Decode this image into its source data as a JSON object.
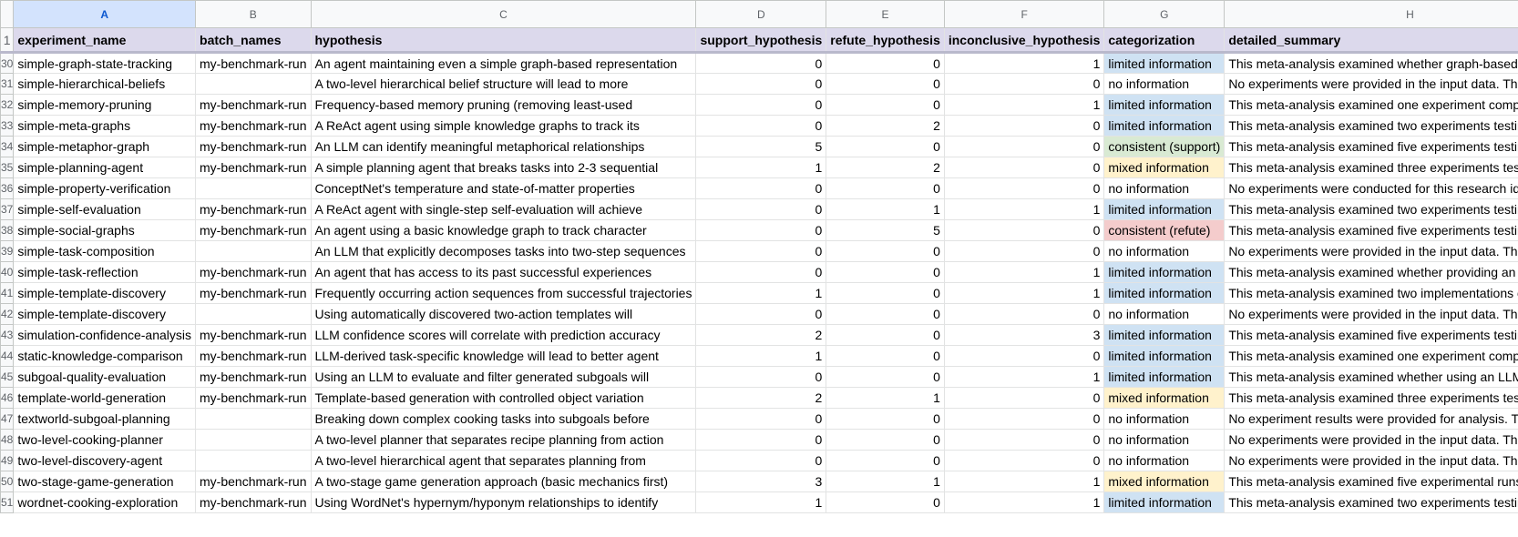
{
  "columns": [
    "A",
    "B",
    "C",
    "D",
    "E",
    "F",
    "G",
    "H"
  ],
  "header_row": {
    "row_number": "1",
    "cells": [
      "experiment_name",
      "batch_names",
      "hypothesis",
      "support_hypothesis",
      "refute_hypothesis",
      "inconclusive_hypothesis",
      "categorization",
      "detailed_summary"
    ]
  },
  "rows": [
    {
      "n": "30",
      "a": "simple-graph-state-tracking",
      "b": "my-benchmark-run",
      "c": "An agent maintaining even a simple graph-based representation",
      "d": "0",
      "e": "0",
      "f": "1",
      "g": "limited information",
      "cat": "limited",
      "h": "This meta-analysis examined whether graph-based state"
    },
    {
      "n": "31",
      "a": "simple-hierarchical-beliefs",
      "b": "",
      "c": "A two-level hierarchical belief structure will lead to more",
      "d": "0",
      "e": "0",
      "f": "0",
      "g": "no information",
      "cat": "none",
      "h": "No experiments were provided in the input data. The experiment"
    },
    {
      "n": "32",
      "a": "simple-memory-pruning",
      "b": "my-benchmark-run",
      "c": "Frequency-based memory pruning (removing least-used",
      "d": "0",
      "e": "0",
      "f": "1",
      "g": "limited information",
      "cat": "limited",
      "h": "This meta-analysis examined one experiment comparing"
    },
    {
      "n": "33",
      "a": "simple-meta-graphs",
      "b": "my-benchmark-run",
      "c": "A ReAct agent using simple knowledge graphs to track its",
      "d": "0",
      "e": "2",
      "f": "0",
      "g": "limited information",
      "cat": "limited",
      "h": "This meta-analysis examined two experiments testing whether"
    },
    {
      "n": "34",
      "a": "simple-metaphor-graph",
      "b": "my-benchmark-run",
      "c": "An LLM can identify meaningful metaphorical relationships",
      "d": "5",
      "e": "0",
      "f": "0",
      "g": "consistent (support)",
      "cat": "consistent-support",
      "h": "This meta-analysis examined five experiments testing whether"
    },
    {
      "n": "35",
      "a": "simple-planning-agent",
      "b": "my-benchmark-run",
      "c": "A simple planning agent that breaks tasks into 2-3 sequential",
      "d": "1",
      "e": "2",
      "f": "0",
      "g": "mixed information",
      "cat": "mixed",
      "h": "This meta-analysis examined three experiments testing whether"
    },
    {
      "n": "36",
      "a": "simple-property-verification",
      "b": "",
      "c": "ConceptNet's temperature and state-of-matter properties",
      "d": "0",
      "e": "0",
      "f": "0",
      "g": "no information",
      "cat": "none",
      "h": "No experiments were conducted for this research idea. The"
    },
    {
      "n": "37",
      "a": "simple-self-evaluation",
      "b": "my-benchmark-run",
      "c": "A ReAct agent with single-step self-evaluation will achieve",
      "d": "0",
      "e": "1",
      "f": "1",
      "g": "limited information",
      "cat": "limited",
      "h": "This meta-analysis examined two experiments testing whether"
    },
    {
      "n": "38",
      "a": "simple-social-graphs",
      "b": "my-benchmark-run",
      "c": "An agent using a basic knowledge graph to track character",
      "d": "0",
      "e": "5",
      "f": "0",
      "g": "consistent (refute)",
      "cat": "consistent-refute",
      "h": "This meta-analysis examined five experiments testing whether"
    },
    {
      "n": "39",
      "a": "simple-task-composition",
      "b": "",
      "c": "An LLM that explicitly decomposes tasks into two-step sequences",
      "d": "0",
      "e": "0",
      "f": "0",
      "g": "no information",
      "cat": "none",
      "h": "No experiments were provided in the input data. The research"
    },
    {
      "n": "40",
      "a": "simple-task-reflection",
      "b": "my-benchmark-run",
      "c": "An agent that has access to its past successful experiences",
      "d": "0",
      "e": "0",
      "f": "1",
      "g": "limited information",
      "cat": "limited",
      "h": "This meta-analysis examined whether providing an agent"
    },
    {
      "n": "41",
      "a": "simple-template-discovery",
      "b": "my-benchmark-run",
      "c": "Frequently occurring action sequences from successful trajectories",
      "d": "1",
      "e": "0",
      "f": "1",
      "g": "limited information",
      "cat": "limited",
      "h": "This meta-analysis examined two implementations of the"
    },
    {
      "n": "42",
      "a": "simple-template-discovery",
      "b": "",
      "c": "Using automatically discovered two-action templates will",
      "d": "0",
      "e": "0",
      "f": "0",
      "g": "no information",
      "cat": "none",
      "h": "No experiments were provided in the input data. The research"
    },
    {
      "n": "43",
      "a": "simulation-confidence-analysis",
      "b": "my-benchmark-run",
      "c": "LLM confidence scores will correlate with prediction accuracy",
      "d": "2",
      "e": "0",
      "f": "3",
      "g": "limited information",
      "cat": "limited",
      "h": "This meta-analysis examined five experiments testing whether"
    },
    {
      "n": "44",
      "a": "static-knowledge-comparison",
      "b": "my-benchmark-run",
      "c": "LLM-derived task-specific knowledge will lead to better agent",
      "d": "1",
      "e": "0",
      "f": "0",
      "g": "limited information",
      "cat": "limited",
      "h": "This meta-analysis examined one experiment comparing"
    },
    {
      "n": "45",
      "a": "subgoal-quality-evaluation",
      "b": "my-benchmark-run",
      "c": "Using an LLM to evaluate and filter generated subgoals will",
      "d": "0",
      "e": "0",
      "f": "1",
      "g": "limited information",
      "cat": "limited",
      "h": "This meta-analysis examined whether using an LLM to evaluate"
    },
    {
      "n": "46",
      "a": "template-world-generation",
      "b": "my-benchmark-run",
      "c": "Template-based generation with controlled object variation",
      "d": "2",
      "e": "1",
      "f": "0",
      "g": "mixed information",
      "cat": "mixed",
      "h": "This meta-analysis examined three experiments testing whether"
    },
    {
      "n": "47",
      "a": "textworld-subgoal-planning",
      "b": "",
      "c": "Breaking down complex cooking tasks into subgoals before",
      "d": "0",
      "e": "0",
      "f": "0",
      "g": "no information",
      "cat": "none",
      "h": "No experiment results were provided for analysis. The research"
    },
    {
      "n": "48",
      "a": "two-level-cooking-planner",
      "b": "",
      "c": "A two-level planner that separates recipe planning from action",
      "d": "0",
      "e": "0",
      "f": "0",
      "g": "no information",
      "cat": "none",
      "h": "No experiments were provided in the input data. The experiment"
    },
    {
      "n": "49",
      "a": "two-level-discovery-agent",
      "b": "",
      "c": "A two-level hierarchical agent that separates planning from",
      "d": "0",
      "e": "0",
      "f": "0",
      "g": "no information",
      "cat": "none",
      "h": "No experiments were provided in the input data. The research"
    },
    {
      "n": "50",
      "a": "two-stage-game-generation",
      "b": "my-benchmark-run",
      "c": "A two-stage game generation approach (basic mechanics first)",
      "d": "3",
      "e": "1",
      "f": "1",
      "g": "mixed information",
      "cat": "mixed",
      "h": "This meta-analysis examined five experimental runs comparing"
    },
    {
      "n": "51",
      "a": "wordnet-cooking-exploration",
      "b": "my-benchmark-run",
      "c": "Using WordNet's hypernym/hyponym relationships to identify",
      "d": "1",
      "e": "0",
      "f": "1",
      "g": "limited information",
      "cat": "limited",
      "h": "This meta-analysis examined two experiments testing whether"
    }
  ]
}
